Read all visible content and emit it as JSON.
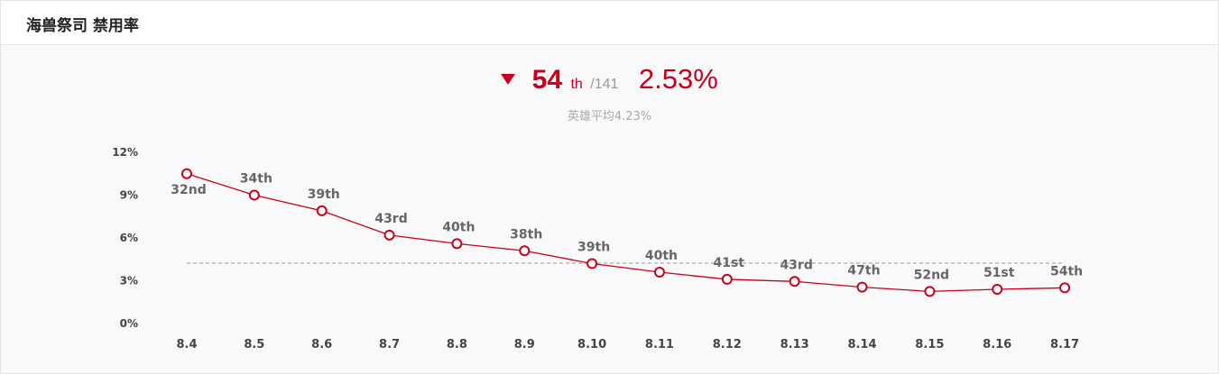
{
  "header": {
    "title": "海兽祭司 禁用率"
  },
  "summary": {
    "trend_icon": "triangle-down-icon",
    "rank": "54",
    "rank_suffix": "th",
    "rank_total": "/141",
    "rate": "2.53%",
    "average_label": "英雄平均4.23%"
  },
  "colors": {
    "accent": "#c8001e",
    "average_line": "#999999"
  },
  "chart_data": {
    "type": "line",
    "title": "",
    "xlabel": "",
    "ylabel": "",
    "categories": [
      "8.4",
      "8.5",
      "8.6",
      "8.7",
      "8.8",
      "8.9",
      "8.10",
      "8.11",
      "8.12",
      "8.13",
      "8.14",
      "8.15",
      "8.16",
      "8.17"
    ],
    "series": [
      {
        "values": [
          10.5,
          9.0,
          7.9,
          6.2,
          5.6,
          5.1,
          4.2,
          3.6,
          3.1,
          2.95,
          2.55,
          2.25,
          2.4,
          2.5
        ],
        "point_labels": [
          "32nd",
          "34th",
          "39th",
          "43rd",
          "40th",
          "38th",
          "39th",
          "40th",
          "41st",
          "43rd",
          "47th",
          "52nd",
          "51st",
          "54th"
        ]
      }
    ],
    "average_line": 4.23,
    "ylim": [
      0,
      12
    ],
    "yticks": [
      "0%",
      "3%",
      "6%",
      "9%",
      "12%"
    ],
    "ytick_values": [
      0,
      3,
      6,
      9,
      12
    ],
    "grid": false,
    "legend": "none"
  }
}
